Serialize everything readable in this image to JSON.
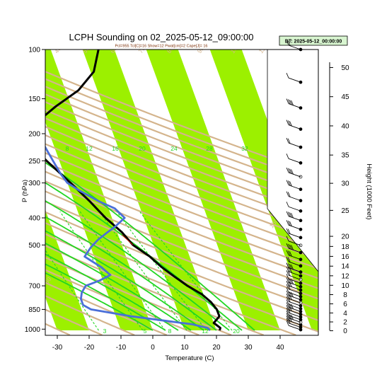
{
  "header": {
    "title": "LCPH Sounding on 02_2025-05-12_09:00:00",
    "subtitle": "Pcl=955 Tcl[C]=16 Show=12 Pwat[cm]=2 Cape[J]= 16",
    "datetime_box": "DT: 2025-05-12_00:00:00"
  },
  "colors": {
    "temperature": "#000000",
    "dewpoint": "#4a6fd8",
    "dry_adiabat": "#d4b48c",
    "isotherm_band": "#9cf000",
    "moist_adiabat": "#22d622",
    "mixing_ratio": "#22d622",
    "parcel": "#cc2200"
  },
  "chart_data": {
    "type": "line",
    "title": "LCPH Sounding on 02_2025-05-12_09:00:00",
    "xlabel": "Temperature (C)",
    "ylabel": "P (hPa)",
    "ylabel_right": "Height (1000 Feet)",
    "x_ticks": [
      -30,
      -20,
      -10,
      0,
      10,
      20,
      30,
      40
    ],
    "y_ticks": [
      100,
      150,
      200,
      250,
      300,
      400,
      500,
      700,
      850,
      1000
    ],
    "right_ticks": [
      0,
      2,
      4,
      6,
      8,
      10,
      12,
      14,
      16,
      18,
      20,
      25,
      30,
      35,
      40,
      45,
      50
    ],
    "xlim": [
      -33,
      51
    ],
    "ylim": [
      1020,
      100
    ],
    "y_scale": "log",
    "dry_adiabat_labels": [
      "30",
      "40",
      "50",
      "60",
      "70",
      "80",
      "90",
      "100",
      "110",
      "120",
      "130",
      "140",
      "150",
      "160"
    ],
    "moist_adiabat_labels": [
      "8",
      "12",
      "16",
      "20",
      "24",
      "28",
      "32"
    ],
    "mixing_ratio_labels": [
      "3",
      "5",
      "8",
      "12",
      "20"
    ],
    "series": [
      {
        "name": "Temperature",
        "pressure": [
          1010,
          990,
          950,
          900,
          850,
          800,
          750,
          700,
          650,
          600,
          550,
          500,
          450,
          400,
          350,
          300,
          250,
          220,
          200,
          180,
          160,
          140,
          120,
          100
        ],
        "values": [
          21,
          21.5,
          20,
          22.5,
          22.5,
          21.5,
          19.5,
          16,
          13,
          10,
          7.5,
          3.5,
          1.5,
          -2,
          -5,
          -9,
          -14,
          -17,
          -16,
          -12,
          -5,
          4,
          11,
          15
        ]
      },
      {
        "name": "Dewpoint",
        "pressure": [
          1010,
          990,
          960,
          940,
          900,
          850,
          820,
          780,
          740,
          700,
          670,
          640,
          600,
          550,
          510,
          480,
          450,
          430,
          400,
          370,
          350,
          320,
          300,
          280,
          250,
          220,
          200,
          180,
          160,
          140,
          120,
          100
        ],
        "values": [
          18,
          17.5,
          13,
          7,
          -5,
          -17,
          -19,
          -19,
          -18,
          -16,
          -11,
          -7,
          -9,
          -13,
          -10,
          -7,
          -3,
          0,
          4,
          2,
          -2,
          -7,
          -10,
          -11,
          -12,
          -13,
          -13,
          -14,
          -14,
          -15,
          -9,
          -2
        ]
      }
    ],
    "wind_barbs_count": 38
  }
}
